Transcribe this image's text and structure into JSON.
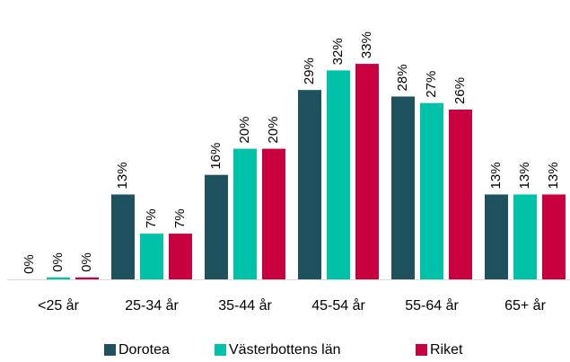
{
  "chart_data": {
    "type": "bar",
    "categories": [
      "<25 år",
      "25-34 år",
      "35-44 år",
      "45-54 år",
      "55-64 år",
      "65+ år"
    ],
    "series": [
      {
        "name": "Dorotea",
        "color": "#1f525e",
        "values": [
          0,
          13,
          16,
          29,
          28,
          13
        ],
        "value_labels": [
          "0%",
          "13%",
          "16%",
          "29%",
          "28%",
          "13%"
        ]
      },
      {
        "name": "Västerbottens län",
        "color": "#00c2a8",
        "values": [
          0.3,
          7,
          20,
          32,
          27,
          13
        ],
        "value_labels": [
          "0%",
          "7%",
          "20%",
          "32%",
          "27%",
          "13%"
        ]
      },
      {
        "name": "Riket",
        "color": "#c8003f",
        "values": [
          0.3,
          7,
          20,
          33,
          26,
          13
        ],
        "value_labels": [
          "0%",
          "7%",
          "20%",
          "33%",
          "26%",
          "13%"
        ]
      }
    ],
    "legend": "bottom"
  }
}
